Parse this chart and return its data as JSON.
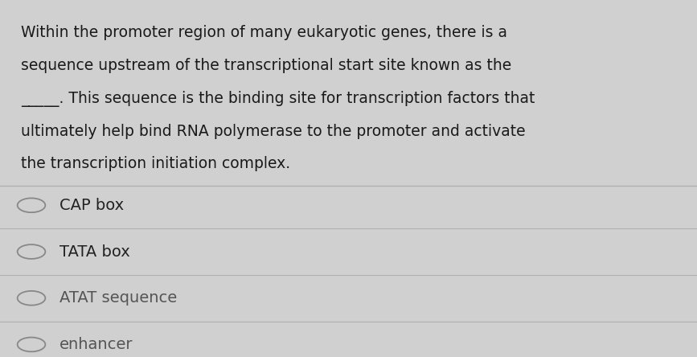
{
  "background_color": "#d0d0d0",
  "card_color": "#e4e4e4",
  "question_text_lines": [
    "Within the promoter region of many eukaryotic genes, there is a",
    "sequence upstream of the transcriptional start site known as the",
    "_____. This sequence is the binding site for transcription factors that",
    "ultimately help bind RNA polymerase to the promoter and activate",
    "the transcription initiation complex."
  ],
  "options": [
    "CAP box",
    "TATA box",
    "ATAT sequence",
    "enhancer"
  ],
  "option_colors": [
    "#222222",
    "#222222",
    "#555555",
    "#555555"
  ],
  "question_font_size": 13.5,
  "option_font_size": 14.0,
  "divider_color": "#b0b0b0",
  "text_color": "#1a1a1a",
  "circle_color": "#888888"
}
